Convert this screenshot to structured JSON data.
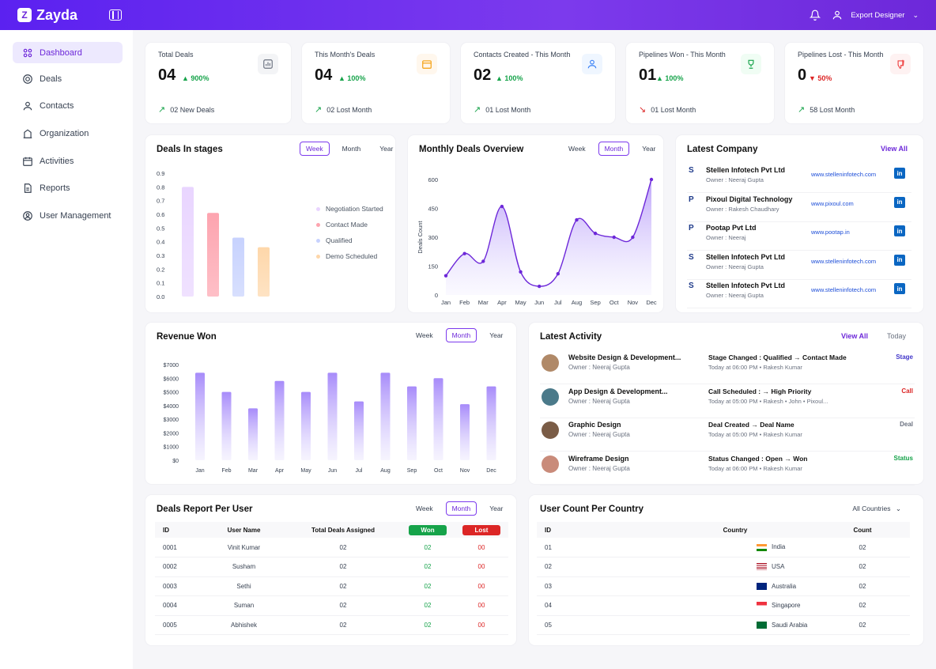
{
  "app": {
    "name": "Zayda",
    "user": "Export Designer"
  },
  "sidebar": {
    "items": [
      {
        "label": "Dashboard",
        "icon": "grid-icon"
      },
      {
        "label": "Deals",
        "icon": "target-icon"
      },
      {
        "label": "Contacts",
        "icon": "user-icon"
      },
      {
        "label": "Organization",
        "icon": "building-icon"
      },
      {
        "label": "Activities",
        "icon": "calendar-icon"
      },
      {
        "label": "Reports",
        "icon": "file-icon"
      },
      {
        "label": "User Management",
        "icon": "users-icon"
      }
    ]
  },
  "stats": [
    {
      "title": "Total Deals",
      "value": "04",
      "change": "900%",
      "foot": "02 New Deals",
      "trend": "up",
      "icon": "bar-chart-icon",
      "accent": "#6b7280"
    },
    {
      "title": "This Month's Deals",
      "value": "04",
      "change": "100%",
      "foot": "02 Lost Month",
      "trend": "up",
      "icon": "calendar-icon",
      "accent": "#f59e0b"
    },
    {
      "title": "Contacts Created - This Month",
      "value": "02",
      "change": "100%",
      "foot": "01 Lost Month",
      "trend": "up",
      "icon": "user-icon",
      "accent": "#3b82f6"
    },
    {
      "title": "Pipelines Won - This Month",
      "value": "01",
      "change": "100%",
      "foot": "01 Lost Month",
      "trend": "down",
      "icon": "trophy-icon",
      "accent": "#16a34a"
    },
    {
      "title": "Pipelines Lost - This Month",
      "value": "0",
      "change": "50%",
      "foot": "58 Lost Month",
      "trend": "up",
      "icon": "thumb-down-icon",
      "accent": "#ef4444"
    }
  ],
  "periods": {
    "week": "Week",
    "month": "Month",
    "year": "Year"
  },
  "deals_stages": {
    "title": "Deals In stages",
    "legend": [
      "Negotiation Started",
      "Contact Made",
      "Qualified",
      "Demo Scheduled"
    ]
  },
  "monthly_overview": {
    "title": "Monthly Deals Overview"
  },
  "revenue": {
    "title": "Revenue Won"
  },
  "latest_company": {
    "title": "Latest Company",
    "view_all": "View All",
    "items": [
      {
        "name": "Stellen Infotech Pvt Ltd",
        "owner": "Owner : Neeraj Gupta",
        "url": "www.stelleninfotech.com",
        "logo": "S"
      },
      {
        "name": "Pixoul Digital Technology",
        "owner": "Owner : Rakesh Chaudhary",
        "url": "www.pixoul.com",
        "logo": "P"
      },
      {
        "name": "Pootap Pvt Ltd",
        "owner": "Owner : Neeraj",
        "url": "www.pootap.in",
        "logo": "P"
      },
      {
        "name": "Stellen Infotech Pvt Ltd",
        "owner": "Owner : Neeraj Gupta",
        "url": "www.stelleninfotech.com",
        "logo": "S"
      },
      {
        "name": "Stellen Infotech Pvt Ltd",
        "owner": "Owner : Neeraj Gupta",
        "url": "www.stelleninfotech.com",
        "logo": "S"
      }
    ]
  },
  "latest_activity": {
    "title": "Latest Activity",
    "view_all": "View All",
    "today": "Today",
    "items": [
      {
        "title": "Website Design & Development...",
        "owner": "Owner : Neeraj Gupta",
        "status": "Stage Changed : Qualified → Contact Made",
        "meta": "Today at 06:00 PM • Rakesh Kumar",
        "tag": "Stage",
        "tag_color": "#4338ca",
        "avatar": "#b08968"
      },
      {
        "title": "App Design & Development...",
        "owner": "Owner : Neeraj Gupta",
        "status": "Call Scheduled : → High Priority",
        "meta": "Today at 05:00 PM • Rakesh • John • Pixoul...",
        "tag": "Call",
        "tag_color": "#dc2626",
        "avatar": "#4b7a8a"
      },
      {
        "title": "Graphic Design",
        "owner": "Owner : Neeraj Gupta",
        "status": "Deal Created → Deal Name",
        "meta": "Today at 05:00 PM • Rakesh Kumar",
        "tag": "Deal",
        "tag_color": "#6b7280",
        "avatar": "#7a5c46"
      },
      {
        "title": "Wireframe Design",
        "owner": "Owner : Neeraj Gupta",
        "status": "Status Changed : Open → Won",
        "meta": "Today at 06:00 PM • Rakesh Kumar",
        "tag": "Status",
        "tag_color": "#16a34a",
        "avatar": "#c98b7a"
      }
    ]
  },
  "deals_report": {
    "title": "Deals Report Per User",
    "headers": [
      "ID",
      "User Name",
      "Total Deals Assigned",
      "Won",
      "Lost"
    ],
    "rows": [
      [
        "0001",
        "Vinit Kumar",
        "02",
        "02",
        "00"
      ],
      [
        "0002",
        "Susham",
        "02",
        "02",
        "00"
      ],
      [
        "0003",
        "Sethi",
        "02",
        "02",
        "00"
      ],
      [
        "0004",
        "Suman",
        "02",
        "02",
        "00"
      ],
      [
        "0005",
        "Abhishek",
        "02",
        "02",
        "00"
      ]
    ]
  },
  "user_country": {
    "title": "User Count Per Country",
    "filter": "All Countries",
    "headers": [
      "ID",
      "Country",
      "Count"
    ],
    "rows": [
      [
        "01",
        "India",
        "02"
      ],
      [
        "02",
        "USA",
        "02"
      ],
      [
        "03",
        "Australia",
        "02"
      ],
      [
        "04",
        "Singapore",
        "02"
      ],
      [
        "05",
        "Saudi Arabia",
        "02"
      ]
    ]
  },
  "chart_data": [
    {
      "type": "bar",
      "title": "Deals In stages",
      "categories": [
        "Negotiation Started",
        "Contact Made",
        "Qualified",
        "Demo Scheduled"
      ],
      "values": [
        0.8,
        0.61,
        0.43,
        0.36
      ],
      "ylim": [
        0,
        0.9
      ],
      "yticks": [
        "0.9",
        "0.8",
        "0.7",
        "0.6",
        "0.5",
        "0.4",
        "0.3",
        "0.2",
        "0.1",
        "0.0"
      ],
      "colors": [
        "#e9d5ff",
        "#fda4af",
        "#c7d2fe",
        "#fed7aa"
      ],
      "legend": "right"
    },
    {
      "type": "area",
      "title": "Monthly Deals Overview",
      "ylabel": "Deals Count",
      "x": [
        "Jan",
        "Feb",
        "Mar",
        "Apr",
        "May",
        "Jun",
        "Jul",
        "Aug",
        "Sep",
        "Oct",
        "Nov",
        "Dec"
      ],
      "values": [
        100,
        215,
        175,
        460,
        120,
        45,
        110,
        390,
        320,
        300,
        300,
        600
      ],
      "ylim": [
        0,
        600
      ],
      "yticks": [
        "600",
        "450",
        "300",
        "150",
        "0"
      ]
    },
    {
      "type": "bar",
      "title": "Revenue Won",
      "categories": [
        "Jan",
        "Feb",
        "Mar",
        "Apr",
        "May",
        "Jun",
        "Jul",
        "Aug",
        "Sep",
        "Oct",
        "Nov",
        "Dec"
      ],
      "values": [
        6400,
        5000,
        3800,
        5800,
        5000,
        6400,
        4300,
        6400,
        5400,
        6000,
        4100,
        5400
      ],
      "ylim": [
        0,
        7000
      ],
      "yticks": [
        "$7000",
        "$6000",
        "$5000",
        "$4000",
        "$3000",
        "$2000",
        "$1000",
        "$0"
      ]
    }
  ]
}
